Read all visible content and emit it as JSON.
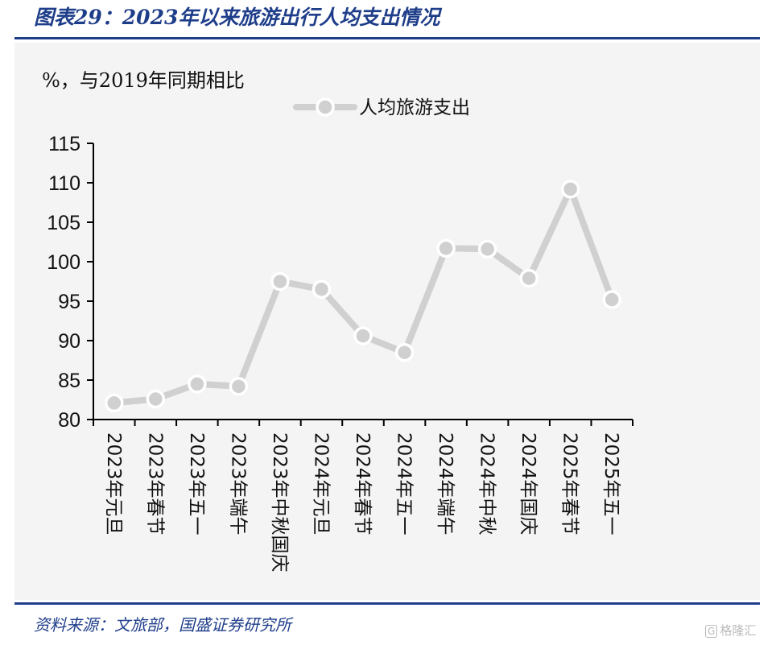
{
  "title": "图表29：2023年以来旅游出行人均支出情况",
  "source": "资料来源：文旅部，国盛证券研究所",
  "watermark": "格隆汇",
  "chart_data": {
    "type": "line",
    "unit_label": "%，与2019年同期相比",
    "categories": [
      "2023年元旦",
      "2023年春节",
      "2023年五一",
      "2023年端午",
      "2023年中秋国庆",
      "2024年元旦",
      "2024年春节",
      "2024年五一",
      "2024年端午",
      "2024年中秋",
      "2024年国庆",
      "2025年春节",
      "2025年五一"
    ],
    "series": [
      {
        "name": "人均旅游支出",
        "values": [
          82.1,
          82.6,
          84.5,
          84.2,
          97.5,
          96.5,
          90.6,
          88.5,
          101.7,
          101.6,
          97.9,
          109.2,
          95.2
        ]
      }
    ],
    "ylim": [
      80,
      115
    ],
    "yticks": [
      80,
      85,
      90,
      95,
      100,
      105,
      110,
      115
    ],
    "legend_position": "top-center",
    "grid": false,
    "line_color": "#d0d0d0"
  }
}
